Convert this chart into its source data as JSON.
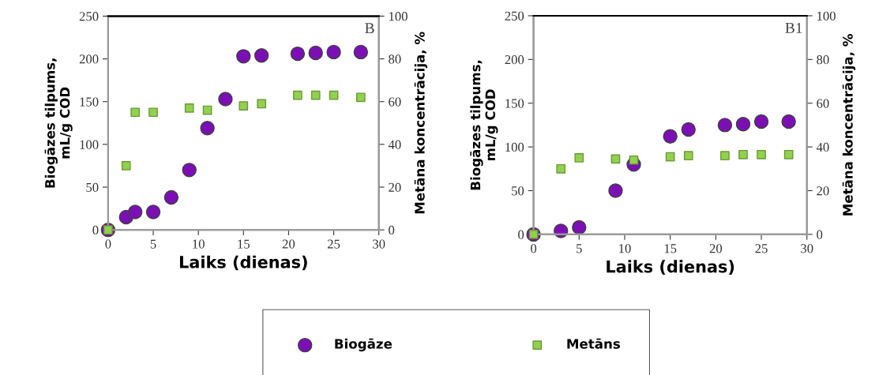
{
  "chart_data": [
    {
      "type": "scatter",
      "xlabel": "Laiks (dienas)",
      "ylabel": "Biogāzes tilpums,\nmL/g COD",
      "y2label": "Metāna koncentrācija, %",
      "annotations": [
        "B"
      ],
      "xlim": [
        0,
        30
      ],
      "xticks": [
        0,
        5,
        10,
        15,
        20,
        25,
        30
      ],
      "ylim": [
        0,
        250
      ],
      "yticks": [
        0,
        50,
        100,
        150,
        200,
        250
      ],
      "y2lim": [
        0,
        100
      ],
      "y2ticks": [
        0,
        20,
        40,
        60,
        80,
        100
      ],
      "grid": false,
      "legend": "bottom",
      "series": [
        {
          "name": "Biogāze",
          "color": "#7b0fb5",
          "marker": "circle",
          "x": [
            0,
            2,
            3,
            5,
            7,
            9,
            11,
            13,
            15,
            17,
            21,
            23,
            25,
            28
          ],
          "values": [
            0,
            15,
            21,
            21,
            38,
            70,
            119,
            153,
            203,
            204,
            206,
            207,
            208,
            208
          ]
        },
        {
          "name": "Metāns",
          "color": "#92d050",
          "marker": "square",
          "axis": "y2",
          "x": [
            0,
            2,
            3,
            5,
            9,
            11,
            15,
            17,
            21,
            23,
            25,
            28
          ],
          "values": [
            0,
            30,
            55,
            55,
            57,
            56,
            58,
            59,
            63,
            63,
            63,
            62
          ]
        }
      ]
    },
    {
      "type": "scatter",
      "xlabel": "Laiks (dienas)",
      "ylabel": "Biogāzes tilpums,\nmL/g COD",
      "y2label": "Metāna koncentrācija, %",
      "annotations": [
        "B1"
      ],
      "xlim": [
        0,
        30
      ],
      "xticks": [
        0,
        5,
        10,
        15,
        20,
        25,
        30
      ],
      "ylim": [
        0,
        250
      ],
      "yticks": [
        0,
        50,
        100,
        150,
        200,
        250
      ],
      "y2lim": [
        0,
        100
      ],
      "y2ticks": [
        0,
        20,
        40,
        60,
        80,
        100
      ],
      "grid": false,
      "series": [
        {
          "color": "#7b0fb5",
          "marker": "circle",
          "x": [
            0,
            3,
            5,
            9,
            11,
            15,
            17,
            21,
            23,
            25,
            28
          ],
          "values": [
            0,
            4,
            8,
            50,
            80,
            112,
            120,
            125,
            126,
            129,
            129
          ]
        },
        {
          "color": "#92d050",
          "marker": "square",
          "axis": "y2",
          "x": [
            0,
            3,
            5,
            9,
            11,
            15,
            17,
            21,
            23,
            25,
            28
          ],
          "values": [
            0,
            30,
            35,
            34.5,
            34,
            35.5,
            36,
            36,
            36.5,
            36.5,
            36.5
          ]
        }
      ]
    }
  ]
}
